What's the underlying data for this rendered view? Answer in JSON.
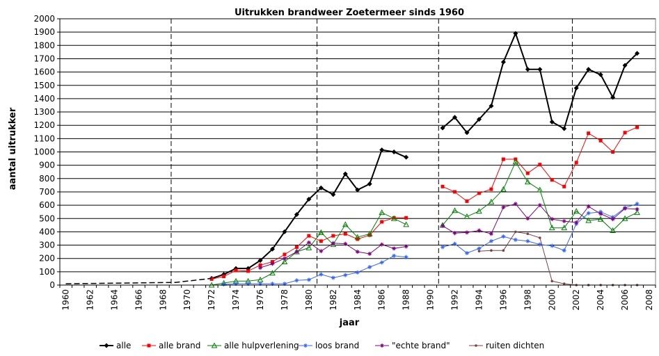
{
  "chart_data": {
    "type": "line",
    "title": "Uitrukken brandweer Zoetermeer sinds 1960",
    "xlabel": "jaar",
    "ylabel": "aantal uitrukker",
    "xlim": [
      1960,
      2009
    ],
    "ylim": [
      0,
      2000
    ],
    "x_ticks": [
      "1960",
      "1962",
      "1964",
      "1966",
      "1968",
      "1970",
      "1972",
      "1974",
      "1976",
      "1978",
      "1980",
      "1982",
      "1984",
      "1986",
      "1988",
      "1990",
      "1992",
      "1994",
      "1996",
      "1998",
      "2000",
      "2002",
      "2004",
      "2006",
      "2008"
    ],
    "y_ticks": [
      "0",
      "100",
      "200",
      "300",
      "400",
      "500",
      "600",
      "700",
      "800",
      "900",
      "1000",
      "1100",
      "1200",
      "1300",
      "1400",
      "1500",
      "1600",
      "1700",
      "1800",
      "1900",
      "2000"
    ],
    "grid": "horizontal",
    "legend_position": "bottom",
    "vertical_markers": [
      1969,
      1981,
      1991,
      2002
    ],
    "series": [
      {
        "name": "alle",
        "color": "#000000",
        "marker": "diamond",
        "x": [
          1972,
          1973,
          1974,
          1975,
          1976,
          1977,
          1978,
          1979,
          1980,
          1981,
          1982,
          1983,
          1984,
          1985,
          1986,
          1987,
          1988,
          null,
          1991,
          1992,
          1993,
          1994,
          1995,
          1996,
          1997,
          1998,
          1999,
          2000,
          2001,
          2002,
          2003,
          2004,
          2005,
          2006,
          2007
        ],
        "values": [
          50,
          80,
          125,
          125,
          185,
          270,
          400,
          530,
          645,
          730,
          680,
          835,
          715,
          760,
          1015,
          1000,
          960,
          null,
          1180,
          1260,
          1145,
          1245,
          1345,
          1675,
          1890,
          1620,
          1620,
          1225,
          1175,
          1480,
          1620,
          1580,
          1410,
          1650,
          1740
        ]
      },
      {
        "name": "alle brand",
        "color": "#ff0000",
        "marker": "square",
        "x": [
          1972,
          1973,
          1974,
          1975,
          1976,
          1977,
          1978,
          1979,
          1980,
          1981,
          1982,
          1983,
          1984,
          1985,
          1986,
          1987,
          1988,
          null,
          1991,
          1992,
          1993,
          1994,
          1995,
          1996,
          1997,
          1998,
          1999,
          2000,
          2001,
          2002,
          2003,
          2004,
          2005,
          2006,
          2007
        ],
        "values": [
          45,
          65,
          110,
          105,
          150,
          175,
          230,
          285,
          370,
          330,
          370,
          385,
          345,
          375,
          475,
          505,
          505,
          null,
          740,
          700,
          630,
          690,
          720,
          945,
          945,
          840,
          905,
          790,
          740,
          920,
          1140,
          1085,
          1000,
          1145,
          1185
        ]
      },
      {
        "name": "alle hulpverlening",
        "color": "#008000",
        "marker": "triangle",
        "x": [
          1972,
          1973,
          1974,
          1975,
          1976,
          1977,
          1978,
          1979,
          1980,
          1981,
          1982,
          1983,
          1984,
          1985,
          1986,
          1987,
          1988,
          null,
          1991,
          1992,
          1993,
          1994,
          1995,
          1996,
          1997,
          1998,
          1999,
          2000,
          2001,
          2002,
          2003,
          2004,
          2005,
          2006,
          2007
        ],
        "values": [
          0,
          15,
          30,
          30,
          40,
          90,
          175,
          250,
          280,
          395,
          305,
          455,
          360,
          385,
          545,
          500,
          455,
          null,
          450,
          560,
          515,
          555,
          625,
          720,
          925,
          775,
          715,
          430,
          430,
          555,
          485,
          495,
          410,
          500,
          545
        ]
      },
      {
        "name": "loos brand",
        "color": "#3366ff",
        "marker": "star",
        "x": [
          1973,
          1974,
          1975,
          1976,
          1977,
          1978,
          1979,
          1980,
          1981,
          1982,
          1983,
          1984,
          1985,
          1986,
          1987,
          1988,
          null,
          1991,
          1992,
          1993,
          1994,
          1995,
          1996,
          1997,
          1998,
          1999,
          2000,
          2001,
          2002,
          2003,
          2004,
          2005,
          2006,
          2007
        ],
        "values": [
          5,
          10,
          10,
          10,
          10,
          10,
          35,
          40,
          80,
          55,
          75,
          95,
          135,
          170,
          220,
          210,
          null,
          285,
          310,
          240,
          275,
          330,
          365,
          340,
          330,
          305,
          295,
          260,
          460,
          540,
          550,
          510,
          580,
          610
        ]
      },
      {
        "name": "\"echte brand\"",
        "color": "#800080",
        "marker": "star",
        "x": [
          1976,
          1977,
          1978,
          1979,
          1980,
          1981,
          1982,
          1983,
          1984,
          1985,
          1986,
          1987,
          1988,
          null,
          1991,
          1992,
          1993,
          1994,
          1995,
          1996,
          1997,
          1998,
          1999,
          2000,
          2001,
          2002,
          2003,
          2004,
          2005,
          2006,
          2007
        ],
        "values": [
          130,
          160,
          200,
          250,
          320,
          255,
          315,
          310,
          250,
          235,
          305,
          275,
          290,
          null,
          445,
          390,
          395,
          410,
          385,
          585,
          610,
          500,
          600,
          495,
          480,
          470,
          590,
          535,
          495,
          575,
          570
        ]
      },
      {
        "name": "ruiten dichten",
        "color": "#804040",
        "marker": "circle",
        "x": [
          1994,
          1995,
          1996,
          1997,
          1998,
          1999,
          2000,
          2001,
          2002,
          2003,
          2004,
          2005,
          2006,
          2007
        ],
        "values": [
          255,
          260,
          260,
          400,
          385,
          355,
          30,
          10,
          0,
          0,
          0,
          0,
          0,
          0
        ]
      },
      {
        "name": "",
        "color": "#000000",
        "marker": "none",
        "dashed": true,
        "x": [
          1960,
          1969,
          1972
        ],
        "values": [
          10,
          20,
          50
        ]
      }
    ]
  }
}
